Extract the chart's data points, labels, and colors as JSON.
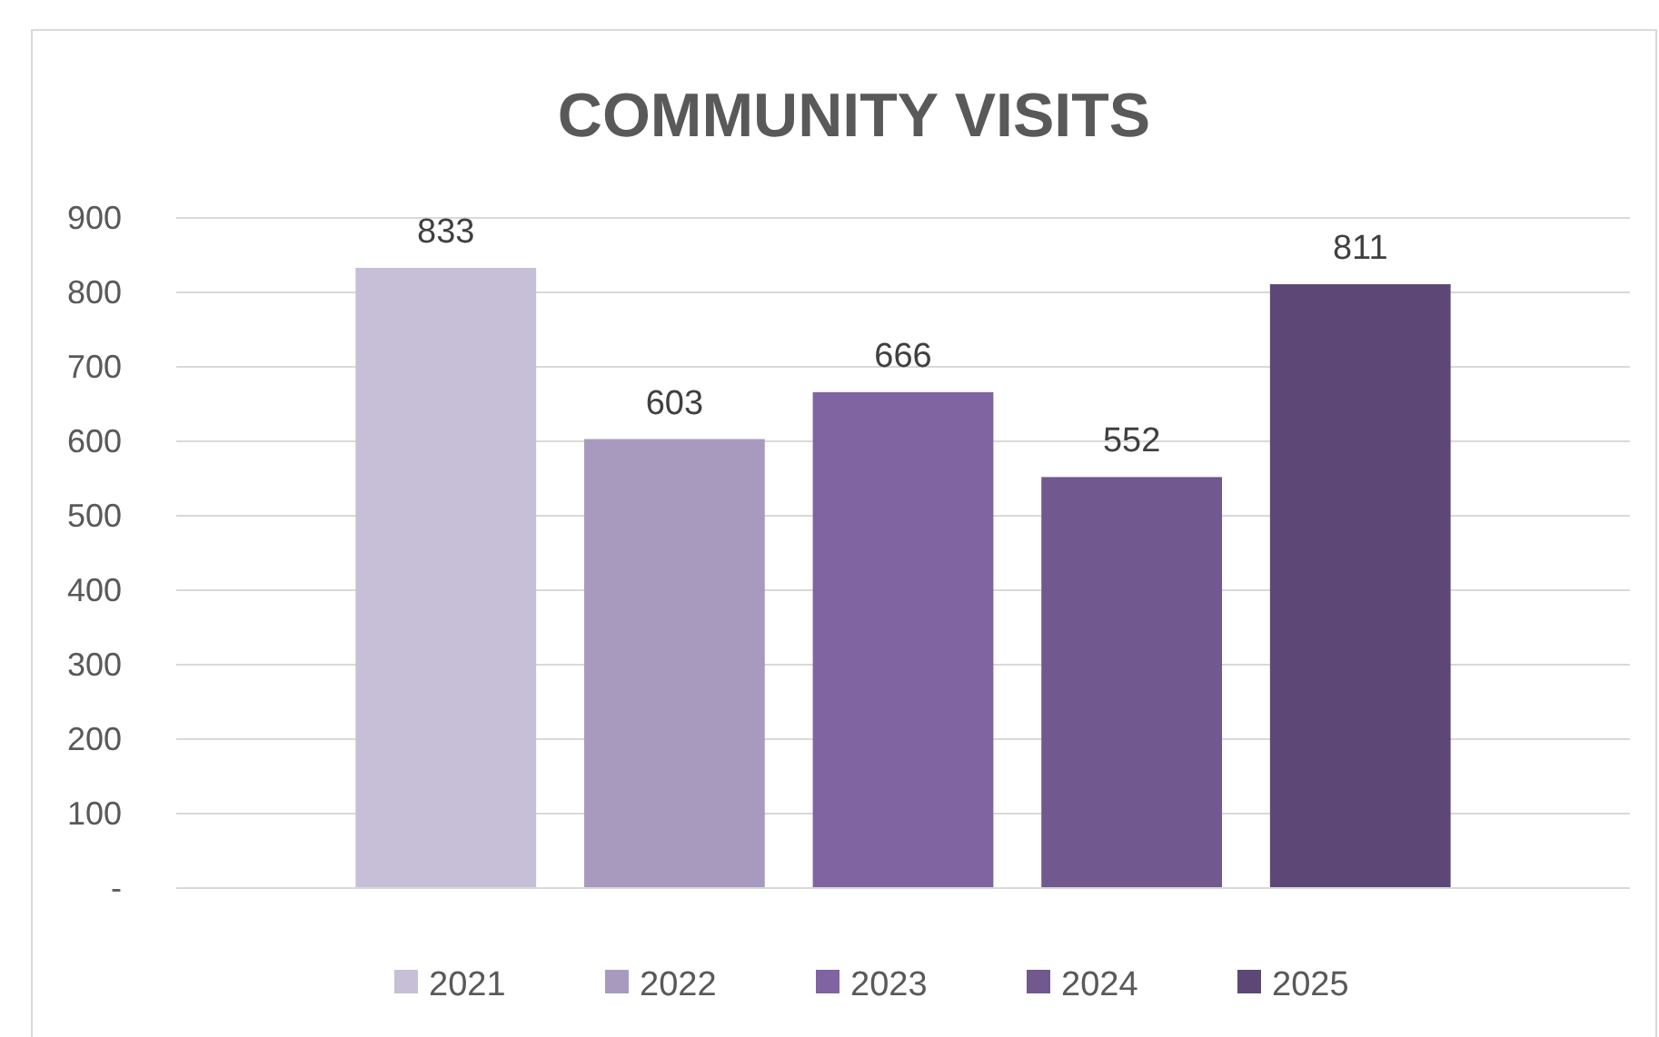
{
  "chart_data": {
    "type": "bar",
    "title": "COMMUNITY VISITS",
    "categories": [
      null
    ],
    "series": [
      {
        "name": "2021",
        "color": "#c7bfd7",
        "values": [
          833
        ]
      },
      {
        "name": "2022",
        "color": "#a89abf",
        "values": [
          603
        ]
      },
      {
        "name": "2023",
        "color": "#8064a2",
        "values": [
          666
        ]
      },
      {
        "name": "2024",
        "color": "#71588f",
        "values": [
          552
        ]
      },
      {
        "name": "2025",
        "color": "#5d4777",
        "values": [
          811
        ]
      }
    ],
    "ylim": [
      0,
      900
    ],
    "yticks": [
      {
        "value": 0,
        "label": "-"
      },
      100,
      200,
      300,
      400,
      500,
      600,
      700,
      800,
      900
    ],
    "grid": "y",
    "legend": "bottom",
    "data_labels": true
  }
}
